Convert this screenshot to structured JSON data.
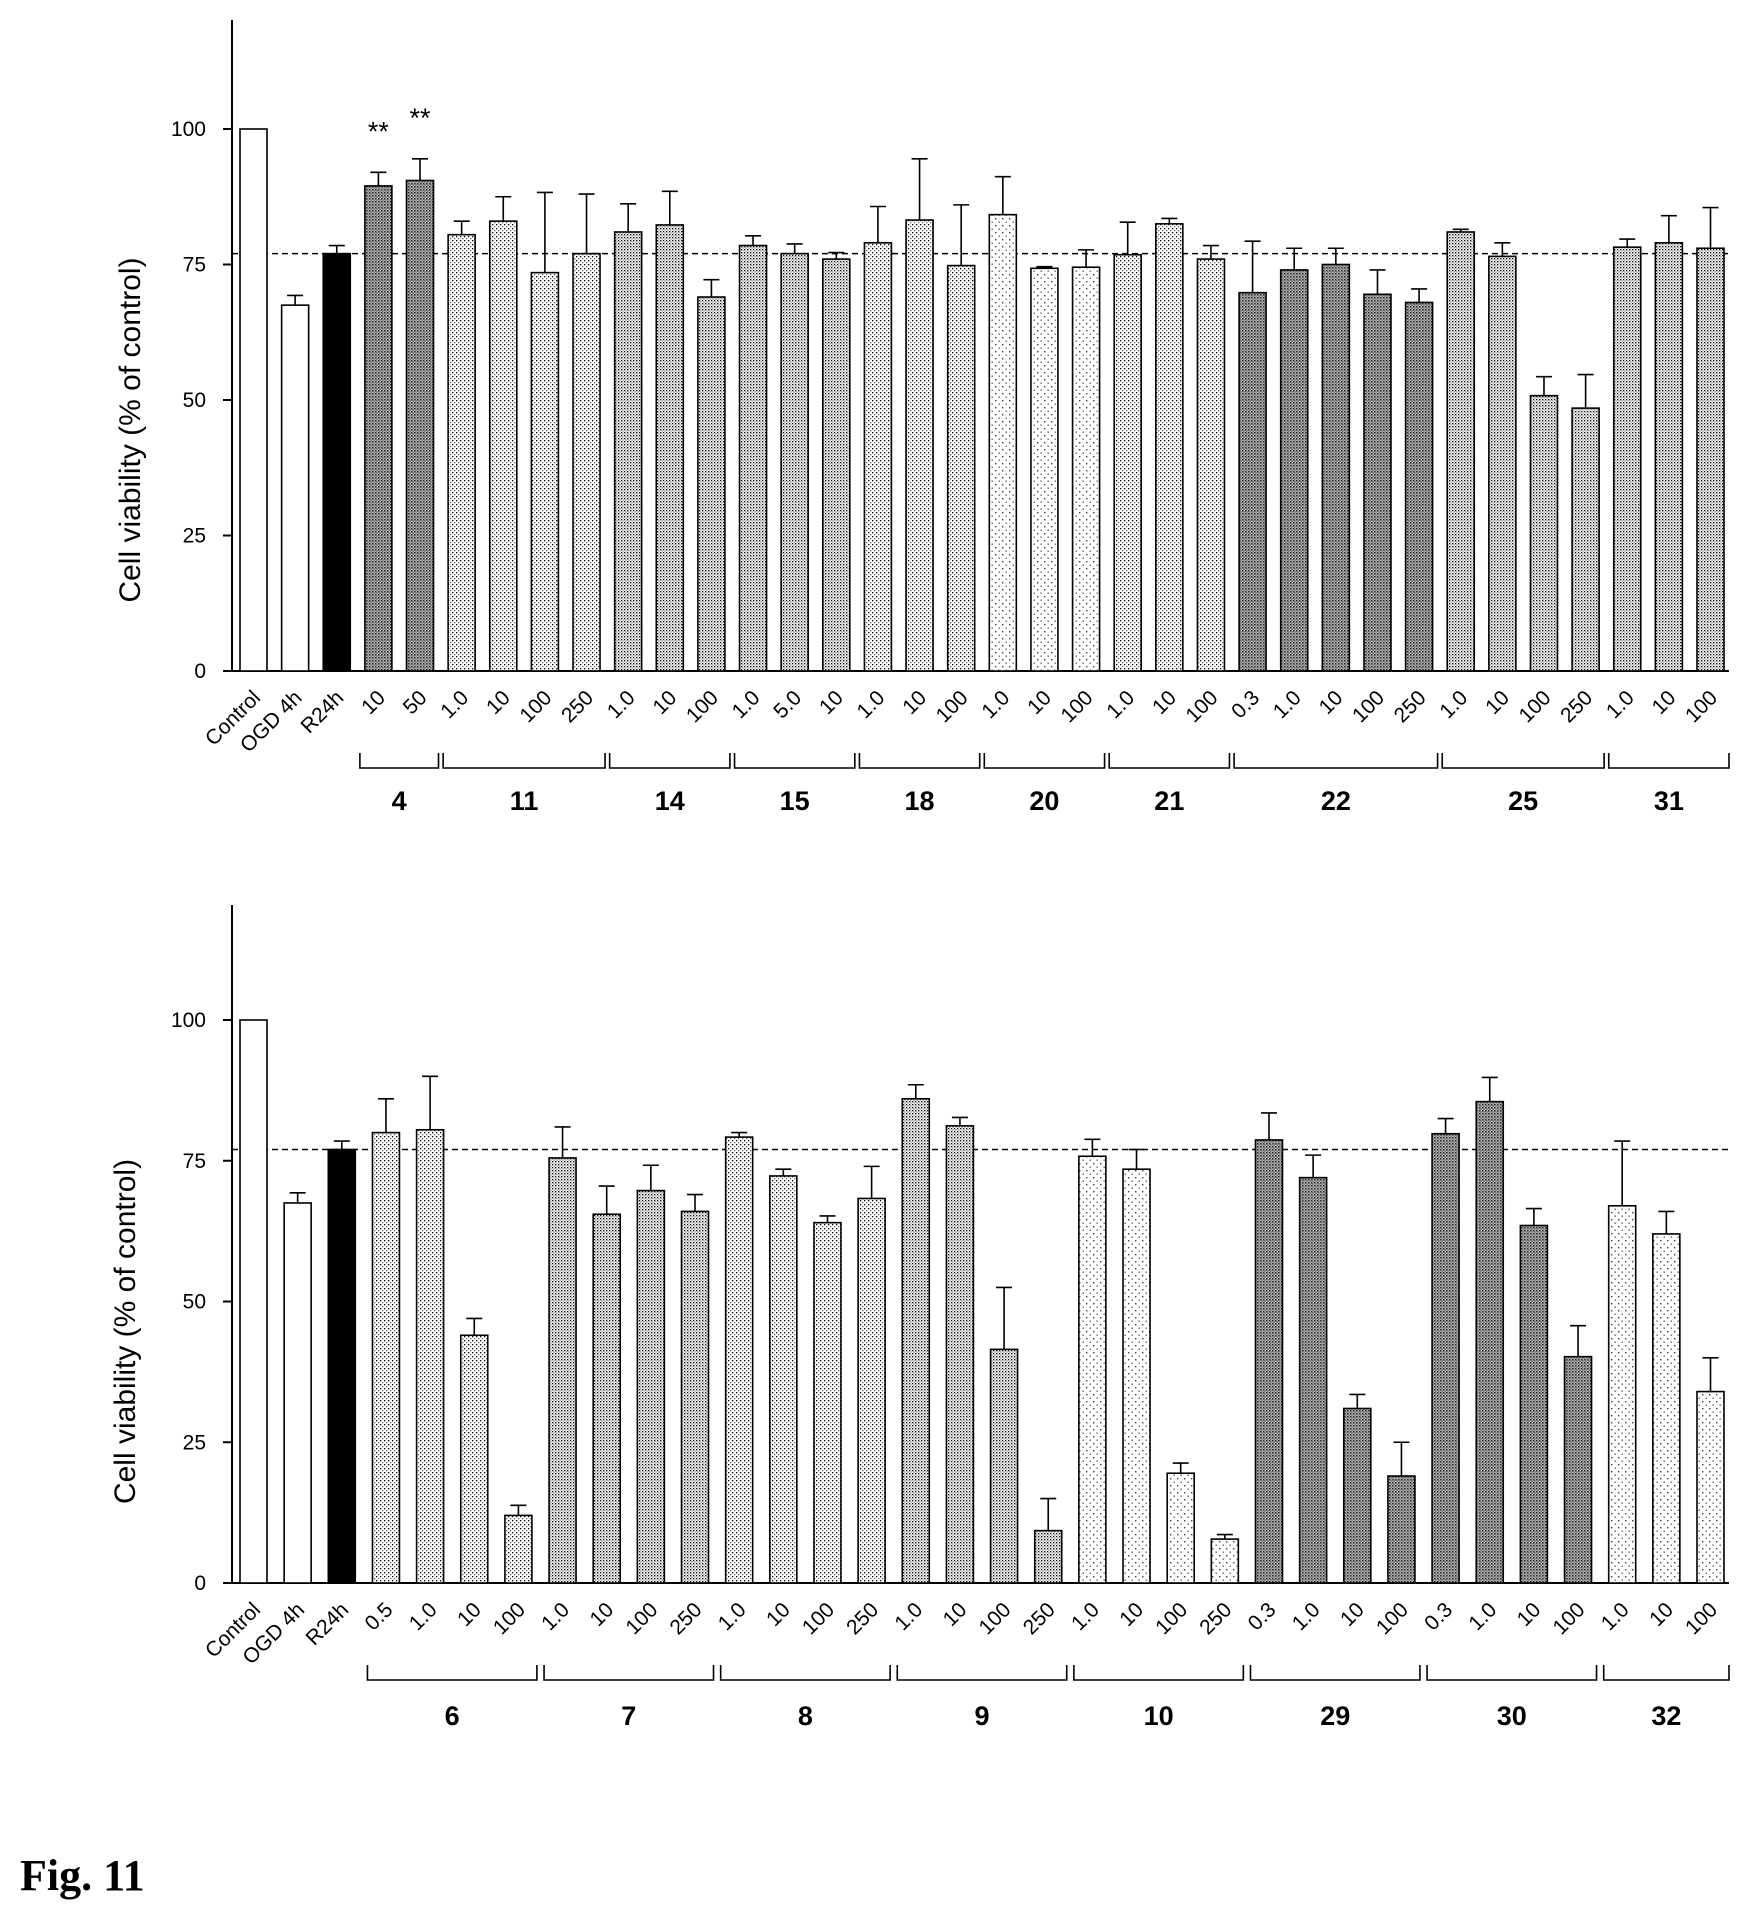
{
  "figure_caption": "Fig. 11",
  "colors": {
    "open": "#ffffff",
    "black": "#000000",
    "stipple_light": "#e4e4e4",
    "stipple_medium": "#c9c9c9",
    "stipple_dark": "#a9a9a9",
    "sparse_dots": "#f3f3f3",
    "reference_line": "#000000"
  },
  "chart_data": [
    {
      "type": "bar",
      "title": "",
      "xlabel": "",
      "ylabel": "Cell viability  (% of control)",
      "ylim": [
        0,
        120
      ],
      "yticks": [
        0,
        25,
        50,
        75,
        100
      ],
      "ytick_labels": [
        "0",
        "25",
        "50",
        "75",
        "100"
      ],
      "reference_line": 77,
      "grid": false,
      "bars": [
        {
          "label": "Control",
          "value": 100,
          "error": 0,
          "fill": "open"
        },
        {
          "label": "OGD 4h",
          "value": 67.5,
          "error": 1.8,
          "fill": "open"
        },
        {
          "label": "R24h",
          "value": 77,
          "error": 1.5,
          "fill": "black"
        },
        {
          "label": "10",
          "group": "4",
          "value": 89.5,
          "error": 2.5,
          "fill": "stipple_dark",
          "annotation": "**"
        },
        {
          "label": "50",
          "group": "4",
          "value": 90.5,
          "error": 4,
          "fill": "stipple_dark",
          "annotation": "**"
        },
        {
          "label": "1.0",
          "group": "11",
          "value": 80.5,
          "error": 2.5,
          "fill": "stipple_light"
        },
        {
          "label": "10",
          "group": "11",
          "value": 83,
          "error": 4.5,
          "fill": "stipple_light"
        },
        {
          "label": "100",
          "group": "11",
          "value": 73.5,
          "error": 14.8,
          "fill": "stipple_light"
        },
        {
          "label": "250",
          "group": "11",
          "value": 77,
          "error": 11,
          "fill": "stipple_light"
        },
        {
          "label": "1.0",
          "group": "14",
          "value": 81,
          "error": 5.2,
          "fill": "stipple_medium"
        },
        {
          "label": "10",
          "group": "14",
          "value": 82.3,
          "error": 6.2,
          "fill": "stipple_medium"
        },
        {
          "label": "100",
          "group": "14",
          "value": 69,
          "error": 3.2,
          "fill": "stipple_medium"
        },
        {
          "label": "1.0",
          "group": "15",
          "value": 78.5,
          "error": 1.8,
          "fill": "stipple_medium"
        },
        {
          "label": "5.0",
          "group": "15",
          "value": 77,
          "error": 1.8,
          "fill": "stipple_medium"
        },
        {
          "label": "10",
          "group": "15",
          "value": 76,
          "error": 1.2,
          "fill": "stipple_medium"
        },
        {
          "label": "1.0",
          "group": "18",
          "value": 79,
          "error": 6.7,
          "fill": "stipple_light"
        },
        {
          "label": "10",
          "group": "18",
          "value": 83.2,
          "error": 11.3,
          "fill": "stipple_light"
        },
        {
          "label": "100",
          "group": "18",
          "value": 74.8,
          "error": 11.2,
          "fill": "stipple_light"
        },
        {
          "label": "1.0",
          "group": "20",
          "value": 84.2,
          "error": 7,
          "fill": "sparse_dots"
        },
        {
          "label": "10",
          "group": "20",
          "value": 74.3,
          "error": 0.3,
          "fill": "sparse_dots"
        },
        {
          "label": "100",
          "group": "20",
          "value": 74.5,
          "error": 3.2,
          "fill": "sparse_dots"
        },
        {
          "label": "1.0",
          "group": "21",
          "value": 76.8,
          "error": 6,
          "fill": "stipple_light"
        },
        {
          "label": "10",
          "group": "21",
          "value": 82.5,
          "error": 1,
          "fill": "stipple_light"
        },
        {
          "label": "100",
          "group": "21",
          "value": 76,
          "error": 2.5,
          "fill": "stipple_light"
        },
        {
          "label": "0.3",
          "group": "22",
          "value": 69.8,
          "error": 9.5,
          "fill": "stipple_dark"
        },
        {
          "label": "1.0",
          "group": "22",
          "value": 74,
          "error": 4,
          "fill": "stipple_dark"
        },
        {
          "label": "10",
          "group": "22",
          "value": 75,
          "error": 3,
          "fill": "stipple_dark"
        },
        {
          "label": "100",
          "group": "22",
          "value": 69.5,
          "error": 4.5,
          "fill": "stipple_dark"
        },
        {
          "label": "250",
          "group": "22",
          "value": 68,
          "error": 2.5,
          "fill": "stipple_dark"
        },
        {
          "label": "1.0",
          "group": "25",
          "value": 81,
          "error": 0.5,
          "fill": "stipple_medium"
        },
        {
          "label": "10",
          "group": "25",
          "value": 76.5,
          "error": 2.5,
          "fill": "stipple_medium"
        },
        {
          "label": "100",
          "group": "25",
          "value": 50.8,
          "error": 3.5,
          "fill": "stipple_medium"
        },
        {
          "label": "250",
          "group": "25",
          "value": 48.5,
          "error": 6.2,
          "fill": "stipple_medium"
        },
        {
          "label": "1.0",
          "group": "31",
          "value": 78.2,
          "error": 1.5,
          "fill": "stipple_medium"
        },
        {
          "label": "10",
          "group": "31",
          "value": 79,
          "error": 5,
          "fill": "stipple_medium"
        },
        {
          "label": "100",
          "group": "31",
          "value": 78,
          "error": 7.5,
          "fill": "stipple_medium"
        }
      ],
      "groups": [
        "4",
        "11",
        "14",
        "15",
        "18",
        "20",
        "21",
        "22",
        "25",
        "31"
      ]
    },
    {
      "type": "bar",
      "title": "",
      "xlabel": "",
      "ylabel": "Cell viability  (% of control)",
      "ylim": [
        0,
        120
      ],
      "yticks": [
        0,
        25,
        50,
        75,
        100
      ],
      "ytick_labels": [
        "0",
        "25",
        "50",
        "75",
        "100"
      ],
      "reference_line": 77,
      "grid": false,
      "bars": [
        {
          "label": "Control",
          "value": 100,
          "error": 0,
          "fill": "open"
        },
        {
          "label": "OGD 4h",
          "value": 67.5,
          "error": 1.8,
          "fill": "open"
        },
        {
          "label": "R24h",
          "value": 77,
          "error": 1.5,
          "fill": "black"
        },
        {
          "label": "0.5",
          "group": "6",
          "value": 80,
          "error": 6,
          "fill": "stipple_light"
        },
        {
          "label": "1.0",
          "group": "6",
          "value": 80.5,
          "error": 9.5,
          "fill": "stipple_light"
        },
        {
          "label": "10",
          "group": "6",
          "value": 44,
          "error": 3,
          "fill": "stipple_light"
        },
        {
          "label": "100",
          "group": "6",
          "value": 12,
          "error": 1.8,
          "fill": "stipple_light"
        },
        {
          "label": "1.0",
          "group": "7",
          "value": 75.5,
          "error": 5.5,
          "fill": "stipple_medium"
        },
        {
          "label": "10",
          "group": "7",
          "value": 65.5,
          "error": 5,
          "fill": "stipple_medium"
        },
        {
          "label": "100",
          "group": "7",
          "value": 69.7,
          "error": 4.5,
          "fill": "stipple_medium"
        },
        {
          "label": "250",
          "group": "7",
          "value": 66,
          "error": 3,
          "fill": "stipple_medium"
        },
        {
          "label": "1.0",
          "group": "8",
          "value": 79.2,
          "error": 0.8,
          "fill": "stipple_light"
        },
        {
          "label": "10",
          "group": "8",
          "value": 72.3,
          "error": 1.2,
          "fill": "stipple_light"
        },
        {
          "label": "100",
          "group": "8",
          "value": 64,
          "error": 1.2,
          "fill": "stipple_light"
        },
        {
          "label": "250",
          "group": "8",
          "value": 68.3,
          "error": 5.7,
          "fill": "stipple_light"
        },
        {
          "label": "1.0",
          "group": "9",
          "value": 86,
          "error": 2.5,
          "fill": "stipple_medium"
        },
        {
          "label": "10",
          "group": "9",
          "value": 81.2,
          "error": 1.5,
          "fill": "stipple_medium"
        },
        {
          "label": "100",
          "group": "9",
          "value": 41.5,
          "error": 11,
          "fill": "stipple_medium"
        },
        {
          "label": "250",
          "group": "9",
          "value": 9.3,
          "error": 5.7,
          "fill": "stipple_medium"
        },
        {
          "label": "1.0",
          "group": "10",
          "value": 75.8,
          "error": 3,
          "fill": "sparse_dots"
        },
        {
          "label": "10",
          "group": "10",
          "value": 73.5,
          "error": 3.5,
          "fill": "sparse_dots"
        },
        {
          "label": "100",
          "group": "10",
          "value": 19.5,
          "error": 1.8,
          "fill": "sparse_dots"
        },
        {
          "label": "250",
          "group": "10",
          "value": 7.8,
          "error": 0.8,
          "fill": "sparse_dots"
        },
        {
          "label": "0.3",
          "group": "29",
          "value": 78.7,
          "error": 4.8,
          "fill": "stipple_dark"
        },
        {
          "label": "1.0",
          "group": "29",
          "value": 72,
          "error": 4,
          "fill": "stipple_dark"
        },
        {
          "label": "10",
          "group": "29",
          "value": 31,
          "error": 2.5,
          "fill": "stipple_dark"
        },
        {
          "label": "100",
          "group": "29",
          "value": 19,
          "error": 6,
          "fill": "stipple_dark"
        },
        {
          "label": "0.3",
          "group": "30",
          "value": 79.8,
          "error": 2.7,
          "fill": "stipple_dark"
        },
        {
          "label": "1.0",
          "group": "30",
          "value": 85.5,
          "error": 4.3,
          "fill": "stipple_dark"
        },
        {
          "label": "10",
          "group": "30",
          "value": 63.5,
          "error": 3,
          "fill": "stipple_dark"
        },
        {
          "label": "100",
          "group": "30",
          "value": 40.2,
          "error": 5.5,
          "fill": "stipple_dark"
        },
        {
          "label": "1.0",
          "group": "32",
          "value": 67,
          "error": 11.5,
          "fill": "sparse_dots"
        },
        {
          "label": "10",
          "group": "32",
          "value": 62,
          "error": 4,
          "fill": "sparse_dots"
        },
        {
          "label": "100",
          "group": "32",
          "value": 34,
          "error": 6,
          "fill": "sparse_dots"
        }
      ],
      "groups": [
        "6",
        "7",
        "8",
        "9",
        "10",
        "29",
        "30",
        "32"
      ]
    }
  ]
}
